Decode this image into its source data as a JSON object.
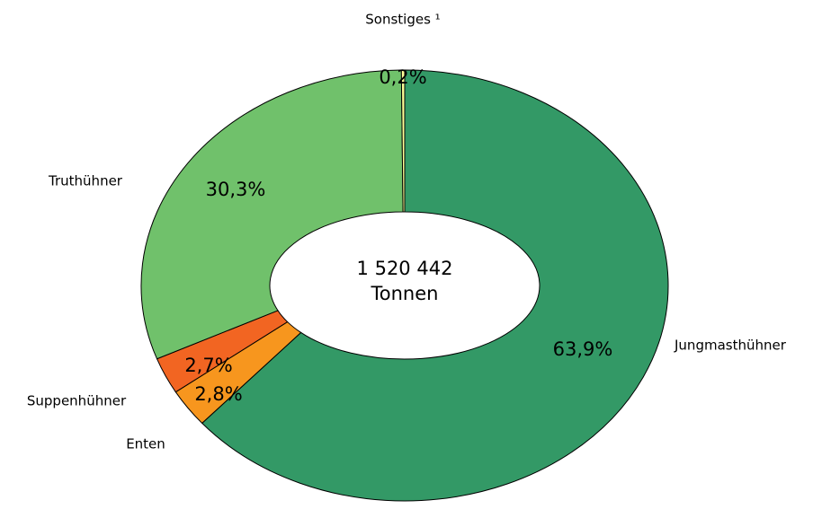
{
  "chart_data": {
    "type": "pie",
    "center_label": [
      "1 520 442",
      "Tonnen"
    ],
    "categories": [
      "Jungmasthühner",
      "Enten",
      "Suppenhühner",
      "Truthühner",
      "Sonstiges ¹"
    ],
    "values": [
      63.9,
      2.8,
      2.7,
      30.3,
      0.2
    ],
    "value_labels": [
      "63,9%",
      "2,8%",
      "2,7%",
      "30,3%",
      "0,2%"
    ],
    "colors": [
      "#339966",
      "#f7961e",
      "#f26522",
      "#70c16b",
      "#ffff99"
    ]
  }
}
